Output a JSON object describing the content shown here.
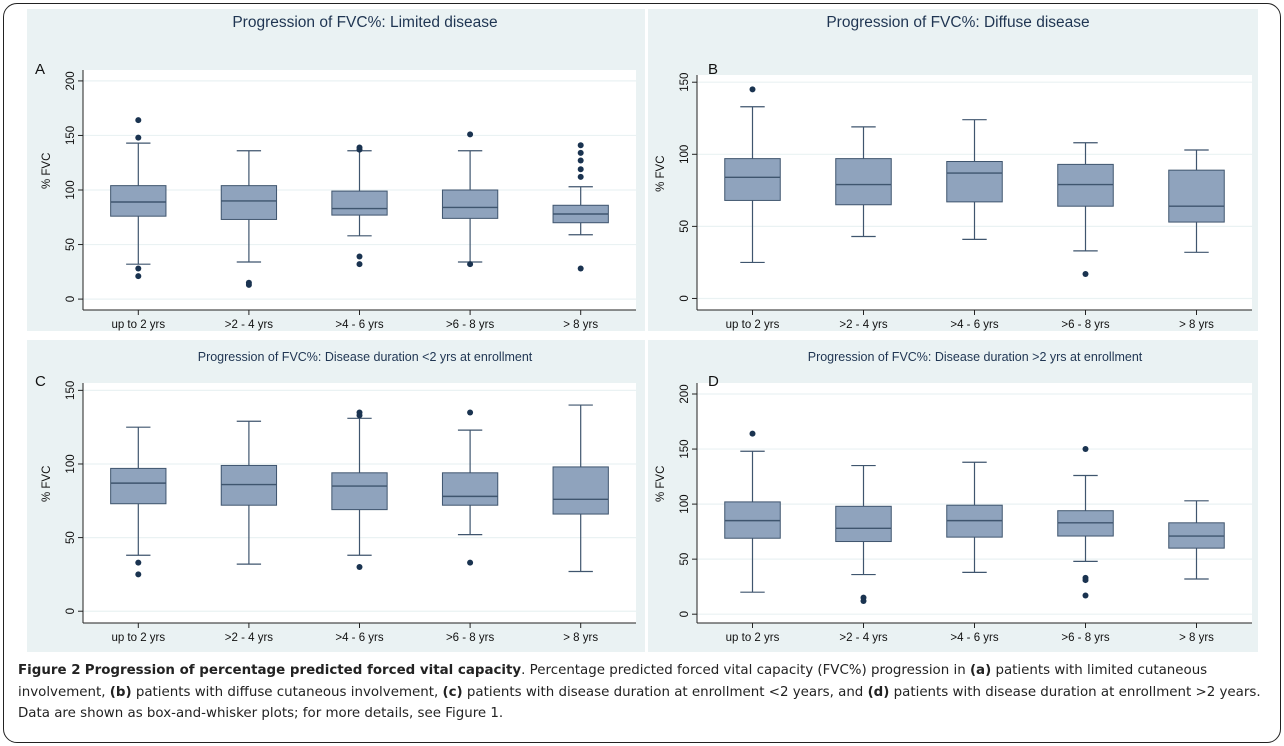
{
  "chart_data": [
    {
      "type": "box",
      "panel": "A",
      "title": "Progression of FVC%: Limited disease",
      "ylabel": "% FVC",
      "ylim": [
        -10,
        210
      ],
      "yticks": [
        0,
        50,
        100,
        150,
        200
      ],
      "categories": [
        "up to 2 yrs",
        ">2 - 4 yrs",
        ">4 - 6 yrs",
        ">6 - 8 yrs",
        "> 8 yrs"
      ],
      "boxes": [
        {
          "q1": 76,
          "median": 89,
          "q3": 104,
          "whisker_low": 32,
          "whisker_high": 143,
          "outliers": [
            164,
            148,
            28,
            21
          ]
        },
        {
          "q1": 73,
          "median": 90,
          "q3": 104,
          "whisker_low": 34,
          "whisker_high": 136,
          "outliers": [
            15,
            13
          ]
        },
        {
          "q1": 77,
          "median": 83,
          "q3": 99,
          "whisker_low": 58,
          "whisker_high": 136,
          "outliers": [
            139,
            137,
            39,
            32
          ]
        },
        {
          "q1": 74,
          "median": 84,
          "q3": 100,
          "whisker_low": 34,
          "whisker_high": 136,
          "outliers": [
            151,
            32
          ]
        },
        {
          "q1": 70,
          "median": 78,
          "q3": 86,
          "whisker_low": 59,
          "whisker_high": 103,
          "outliers": [
            141,
            134,
            127,
            119,
            112,
            28
          ]
        }
      ]
    },
    {
      "type": "box",
      "panel": "B",
      "title": "Progression of FVC%: Diffuse disease",
      "ylabel": "% FVC",
      "ylim": [
        -8,
        155
      ],
      "yticks": [
        0,
        50,
        100,
        150
      ],
      "categories": [
        "up to 2 yrs",
        ">2 - 4 yrs",
        ">4 - 6 yrs",
        ">6 - 8 yrs",
        "> 8 yrs"
      ],
      "boxes": [
        {
          "q1": 68,
          "median": 84,
          "q3": 97,
          "whisker_low": 25,
          "whisker_high": 133,
          "outliers": [
            145
          ]
        },
        {
          "q1": 65,
          "median": 79,
          "q3": 97,
          "whisker_low": 43,
          "whisker_high": 119,
          "outliers": []
        },
        {
          "q1": 67,
          "median": 87,
          "q3": 95,
          "whisker_low": 41,
          "whisker_high": 124,
          "outliers": []
        },
        {
          "q1": 64,
          "median": 79,
          "q3": 93,
          "whisker_low": 33,
          "whisker_high": 108,
          "outliers": [
            17
          ]
        },
        {
          "q1": 53,
          "median": 64,
          "q3": 89,
          "whisker_low": 32,
          "whisker_high": 103,
          "outliers": []
        }
      ]
    },
    {
      "type": "box",
      "panel": "C",
      "title": "Progression of FVC%: Disease duration <2 yrs at enrollment",
      "ylabel": "% FVC",
      "ylim": [
        -8,
        155
      ],
      "yticks": [
        0,
        50,
        100,
        150
      ],
      "categories": [
        "up to 2 yrs",
        ">2 - 4 yrs",
        ">4 - 6 yrs",
        ">6 - 8 yrs",
        "> 8 yrs"
      ],
      "boxes": [
        {
          "q1": 73,
          "median": 87,
          "q3": 97,
          "whisker_low": 38,
          "whisker_high": 125,
          "outliers": [
            33,
            25
          ]
        },
        {
          "q1": 72,
          "median": 86,
          "q3": 99,
          "whisker_low": 32,
          "whisker_high": 129,
          "outliers": []
        },
        {
          "q1": 69,
          "median": 85,
          "q3": 94,
          "whisker_low": 38,
          "whisker_high": 131,
          "outliers": [
            135,
            133,
            30
          ]
        },
        {
          "q1": 72,
          "median": 78,
          "q3": 94,
          "whisker_low": 52,
          "whisker_high": 123,
          "outliers": [
            135,
            33
          ]
        },
        {
          "q1": 66,
          "median": 76,
          "q3": 98,
          "whisker_low": 27,
          "whisker_high": 140,
          "outliers": []
        }
      ]
    },
    {
      "type": "box",
      "panel": "D",
      "title": "Progression of FVC%: Disease duration >2 yrs at enrollment",
      "ylabel": "% FVC",
      "ylim": [
        -8,
        210
      ],
      "yticks": [
        0,
        50,
        100,
        150,
        200
      ],
      "categories": [
        "up to 2 yrs",
        ">2 - 4 yrs",
        ">4 - 6 yrs",
        ">6 - 8 yrs",
        "> 8 yrs"
      ],
      "boxes": [
        {
          "q1": 69,
          "median": 85,
          "q3": 102,
          "whisker_low": 20,
          "whisker_high": 148,
          "outliers": [
            164
          ]
        },
        {
          "q1": 66,
          "median": 78,
          "q3": 98,
          "whisker_low": 36,
          "whisker_high": 135,
          "outliers": [
            15,
            12
          ]
        },
        {
          "q1": 70,
          "median": 85,
          "q3": 99,
          "whisker_low": 38,
          "whisker_high": 138,
          "outliers": []
        },
        {
          "q1": 71,
          "median": 83,
          "q3": 94,
          "whisker_low": 48,
          "whisker_high": 126,
          "outliers": [
            150,
            33,
            31,
            17
          ]
        },
        {
          "q1": 60,
          "median": 71,
          "q3": 83,
          "whisker_low": 32,
          "whisker_high": 103,
          "outliers": []
        }
      ]
    }
  ],
  "colors": {
    "box_fill": "#8fa3bd",
    "box_stroke": "#3f556e",
    "outlier": "#1a3350",
    "title": "#1f3552",
    "plot_bg": "#ffffff",
    "outer_bg": "#eaf2f3",
    "grid": "#eaf2f3"
  },
  "caption": {
    "figure_label": "Figure 2",
    "title": "Progression of percentage predicted forced vital capacity",
    "text_1": ". Percentage predicted forced vital capacity (FVC%) progression in ",
    "label_a": "(a)",
    "text_2": " patients with limited cutaneous involvement, ",
    "label_b": "(b)",
    "text_3": " patients with diffuse cutaneous involvement, ",
    "label_c": "(c)",
    "text_4": " patients with disease duration at enrollment <2 years, and ",
    "label_d": "(d)",
    "text_5": " patients with disease duration at enrollment >2 years. Data are shown as box-and-whisker plots; for more details, see Figure 1."
  }
}
